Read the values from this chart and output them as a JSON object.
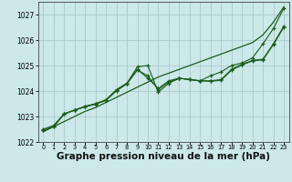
{
  "bg_color": "#cce8e8",
  "grid_color": "#aacccc",
  "line_color": "#1a5c1a",
  "xlabel": "Graphe pression niveau de la mer (hPa)",
  "xlabel_fontsize": 7.5,
  "ylim": [
    1022,
    1027.5
  ],
  "xlim": [
    -0.5,
    23.5
  ],
  "yticks": [
    1022,
    1023,
    1024,
    1025,
    1026,
    1027
  ],
  "xticks": [
    0,
    1,
    2,
    3,
    4,
    5,
    6,
    7,
    8,
    9,
    10,
    11,
    12,
    13,
    14,
    15,
    16,
    17,
    18,
    19,
    20,
    21,
    22,
    23
  ],
  "series": [
    {
      "x": [
        0,
        1,
        2,
        3,
        4,
        5,
        6,
        7,
        8,
        9,
        10,
        11,
        12,
        13,
        14,
        15,
        16,
        17,
        18,
        19,
        20,
        21,
        22,
        23
      ],
      "y": [
        1022.4,
        1022.6,
        1022.8,
        1023.0,
        1023.2,
        1023.35,
        1023.55,
        1023.75,
        1023.95,
        1024.15,
        1024.35,
        1024.55,
        1024.7,
        1024.85,
        1025.0,
        1025.15,
        1025.3,
        1025.45,
        1025.6,
        1025.75,
        1025.9,
        1026.2,
        1026.7,
        1027.3
      ],
      "marker": false
    },
    {
      "x": [
        0,
        1,
        2,
        3,
        4,
        5,
        6,
        7,
        8,
        9,
        10,
        11,
        12,
        13,
        14,
        15,
        16,
        17,
        18,
        19,
        20,
        21,
        22,
        23
      ],
      "y": [
        1022.5,
        1022.65,
        1023.1,
        1023.25,
        1023.4,
        1023.5,
        1023.65,
        1024.05,
        1024.3,
        1024.95,
        1025.0,
        1023.95,
        1024.3,
        1024.5,
        1024.45,
        1024.4,
        1024.4,
        1024.45,
        1024.85,
        1025.05,
        1025.2,
        1025.25,
        1025.85,
        1026.55
      ],
      "marker": true
    },
    {
      "x": [
        0,
        1,
        2,
        3,
        4,
        5,
        6,
        7,
        8,
        9,
        10,
        11,
        12,
        13,
        14,
        15,
        16,
        17,
        18,
        19,
        20,
        21,
        22,
        23
      ],
      "y": [
        1022.45,
        1022.6,
        1023.1,
        1023.25,
        1023.38,
        1023.48,
        1023.63,
        1024.0,
        1024.28,
        1024.82,
        1024.6,
        1024.05,
        1024.35,
        1024.5,
        1024.45,
        1024.4,
        1024.38,
        1024.42,
        1024.82,
        1025.02,
        1025.18,
        1025.22,
        1025.82,
        1026.5
      ],
      "marker": true
    },
    {
      "x": [
        0,
        1,
        2,
        3,
        4,
        5,
        6,
        7,
        8,
        9,
        10,
        11,
        12,
        13,
        14,
        15,
        16,
        17,
        18,
        19,
        20,
        21,
        22,
        23
      ],
      "y": [
        1022.45,
        1022.6,
        1023.1,
        1023.25,
        1023.38,
        1023.5,
        1023.65,
        1024.05,
        1024.3,
        1024.85,
        1024.5,
        1024.1,
        1024.4,
        1024.5,
        1024.45,
        1024.4,
        1024.6,
        1024.75,
        1025.0,
        1025.1,
        1025.3,
        1025.85,
        1026.45,
        1027.25
      ],
      "marker": true
    }
  ]
}
